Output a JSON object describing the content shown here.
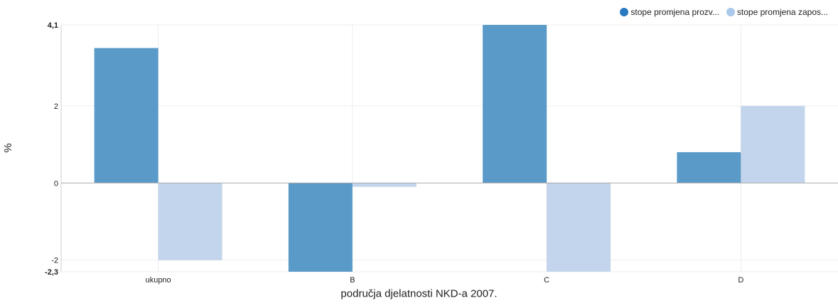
{
  "chart_data": {
    "type": "bar",
    "title": "",
    "xlabel": "područja djelatnosti NKD-a 2007.",
    "ylabel": "%",
    "categories": [
      "ukupno",
      "B",
      "C",
      "D"
    ],
    "series": [
      {
        "name": "stope promjena prozv...",
        "color": "#5a9ac8",
        "values": [
          3.5,
          -2.3,
          4.1,
          0.8
        ]
      },
      {
        "name": "stope promjena zapos...",
        "color": "#c3d5ec",
        "values": [
          -2.0,
          -0.1,
          -2.3,
          2.0
        ]
      }
    ],
    "ylim": [
      -2.3,
      4.1
    ],
    "yticks": [
      {
        "value": 4.1,
        "label": "4,1",
        "bold": true
      },
      {
        "value": 2,
        "label": "2",
        "bold": false
      },
      {
        "value": 0,
        "label": "0",
        "bold": false
      },
      {
        "value": -2,
        "label": "-2",
        "bold": false
      },
      {
        "value": -2.3,
        "label": "-2,3",
        "bold": true
      }
    ],
    "legend_position": "top-right",
    "legend_dot_colors": [
      "#2979c0",
      "#a9c8eb"
    ],
    "grid": true
  }
}
